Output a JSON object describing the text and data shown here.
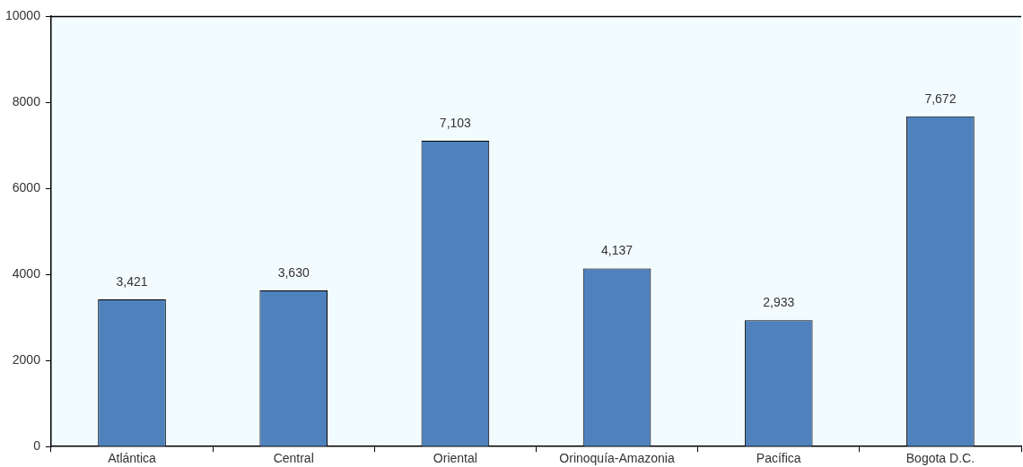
{
  "chart_data": {
    "type": "bar",
    "categories": [
      "Atlántica",
      "Central",
      "Oriental",
      "Orinoquía-Amazonia",
      "Pacífica",
      "Bogota D.C."
    ],
    "values": [
      3421,
      3630,
      7103,
      4137,
      2933,
      7672
    ],
    "value_labels": [
      "3,421",
      "3,630",
      "7,103",
      "4,137",
      "2,933",
      "7,672"
    ],
    "color": "#4f81bd",
    "ylim": [
      0,
      10000
    ],
    "yticks": [
      0,
      2000,
      4000,
      6000,
      8000,
      10000
    ],
    "grid": false,
    "legend": false
  }
}
